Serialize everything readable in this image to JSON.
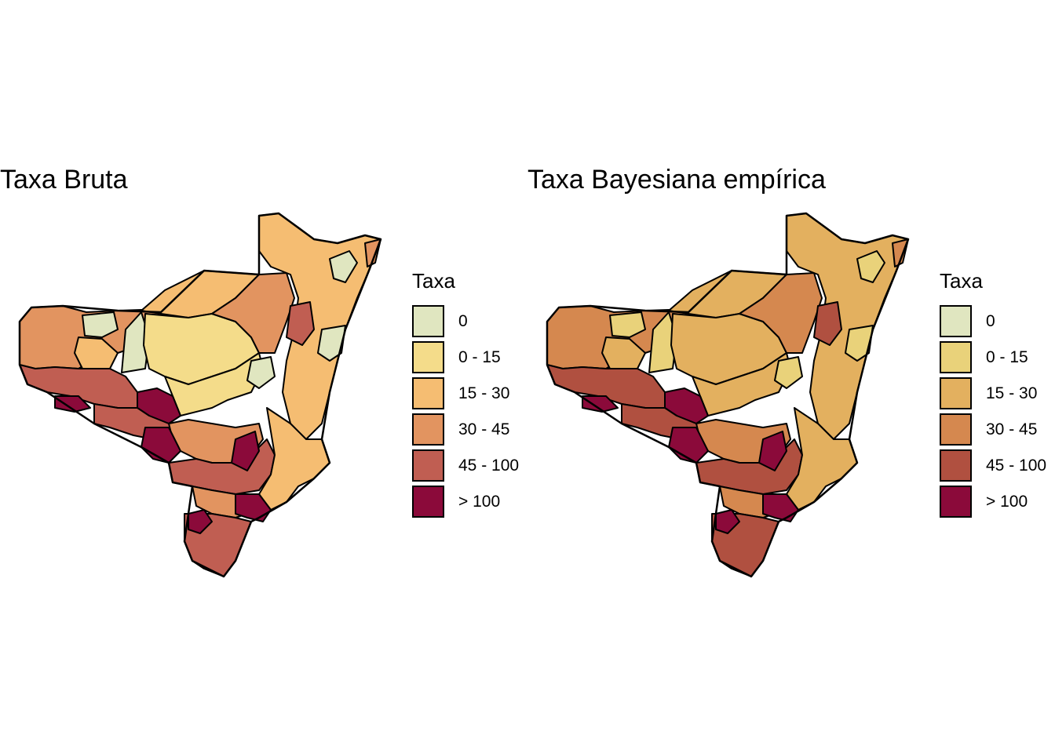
{
  "panels": [
    {
      "title": "Taxa Bruta",
      "legend": {
        "title": "Taxa",
        "items": [
          {
            "label": "0",
            "color": "#e0e6c0"
          },
          {
            "label": "0 - 15",
            "color": "#f4dc8a"
          },
          {
            "label": "15 - 30",
            "color": "#f5bd72"
          },
          {
            "label": "30 - 45",
            "color": "#e29460"
          },
          {
            "label": "45 - 100",
            "color": "#c05e52"
          },
          {
            "label": "> 100",
            "color": "#8b0a3a"
          }
        ]
      }
    },
    {
      "title": "Taxa Bayesiana empírica",
      "legend": {
        "title": "Taxa",
        "items": [
          {
            "label": "0",
            "color": "#e0e6c0"
          },
          {
            "label": "0 - 15",
            "color": "#e9d27a"
          },
          {
            "label": "15 - 30",
            "color": "#e3b05f"
          },
          {
            "label": "30 - 45",
            "color": "#d5884f"
          },
          {
            "label": "45 - 100",
            "color": "#b05040"
          },
          {
            "label": "> 100",
            "color": "#8b0a3a"
          }
        ]
      }
    }
  ]
}
